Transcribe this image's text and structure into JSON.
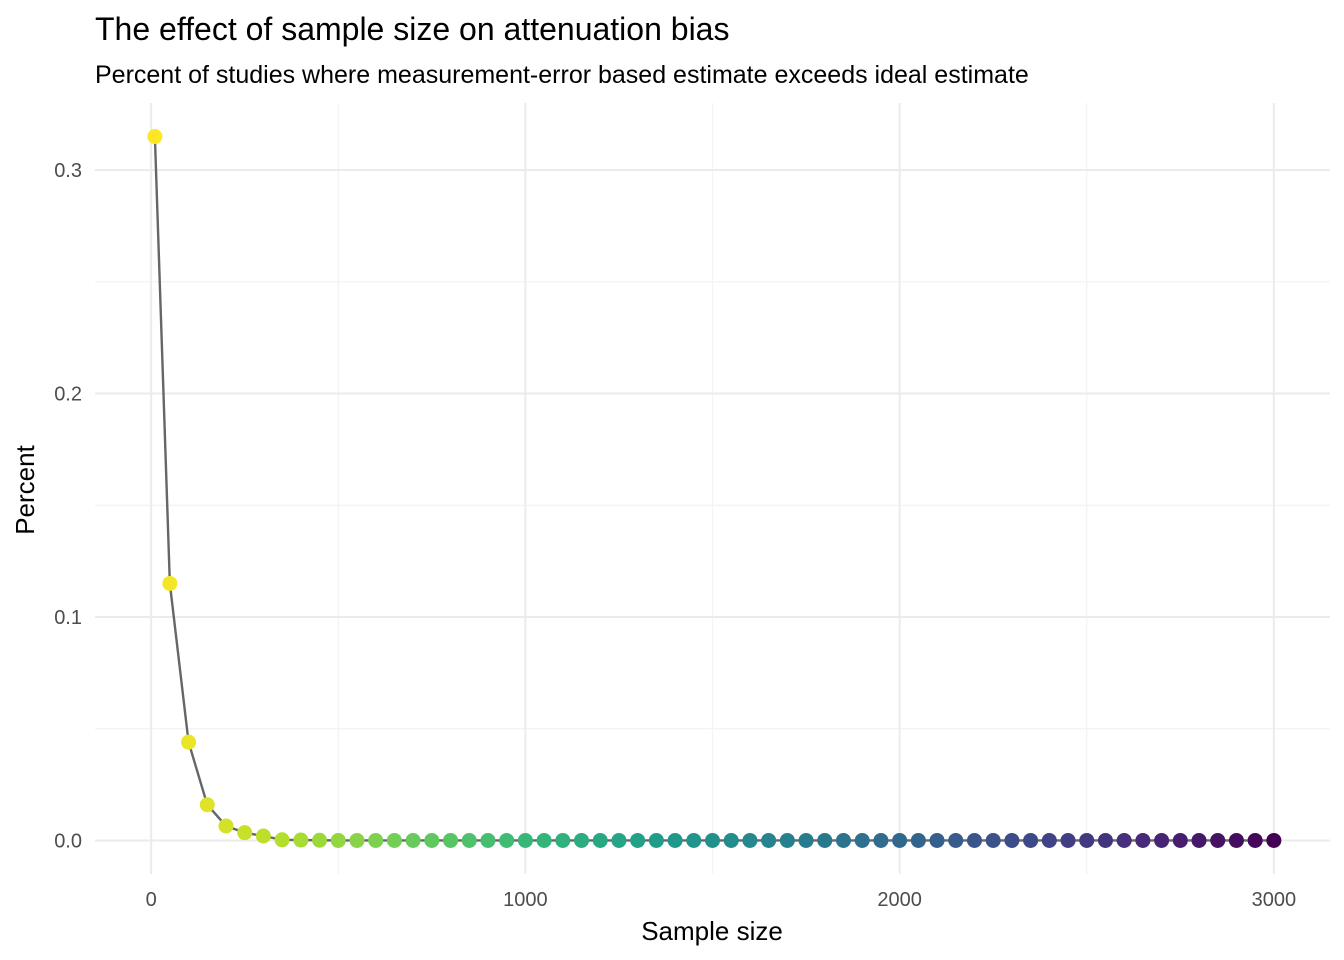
{
  "chart_data": {
    "type": "scatter",
    "title": "The effect of sample size on attenuation bias",
    "subtitle": "Percent of studies where measurement-error based estimate exceeds ideal estimate",
    "xlabel": "Sample size",
    "ylabel": "Percent",
    "xlim": [
      -150,
      3150
    ],
    "ylim": [
      -0.015,
      0.33
    ],
    "x_ticks": [
      0,
      1000,
      2000,
      3000
    ],
    "x_tick_labels": [
      "0",
      "1000",
      "2000",
      "3000"
    ],
    "y_ticks": [
      0.0,
      0.1,
      0.2,
      0.3
    ],
    "y_tick_labels": [
      "0.0",
      "0.1",
      "0.2",
      "0.3"
    ],
    "grid": true,
    "line_color": "#666666",
    "color_scale": "viridis (reversed by sample size)",
    "x": [
      10,
      50,
      100,
      150,
      200,
      250,
      300,
      350,
      400,
      450,
      500,
      550,
      600,
      650,
      700,
      750,
      800,
      850,
      900,
      950,
      1000,
      1050,
      1100,
      1150,
      1200,
      1250,
      1300,
      1350,
      1400,
      1450,
      1500,
      1550,
      1600,
      1650,
      1700,
      1750,
      1800,
      1850,
      1900,
      1950,
      2000,
      2050,
      2100,
      2150,
      2200,
      2250,
      2300,
      2350,
      2400,
      2450,
      2500,
      2550,
      2600,
      2650,
      2700,
      2750,
      2800,
      2850,
      2900,
      2950,
      3000
    ],
    "y": [
      0.315,
      0.115,
      0.044,
      0.016,
      0.0065,
      0.0035,
      0.002,
      0.0003,
      0.0002,
      0.0001,
      0,
      0,
      0,
      0,
      0,
      0,
      0,
      0,
      0,
      0,
      0,
      0,
      0,
      0,
      0,
      0,
      0,
      0,
      0,
      0,
      0,
      0,
      0,
      0,
      0,
      0,
      0,
      0,
      0,
      0,
      0,
      0,
      0,
      0,
      0,
      0,
      0,
      0,
      0,
      0,
      0,
      0,
      0,
      0,
      0,
      0,
      0,
      0,
      0,
      0,
      0
    ]
  }
}
